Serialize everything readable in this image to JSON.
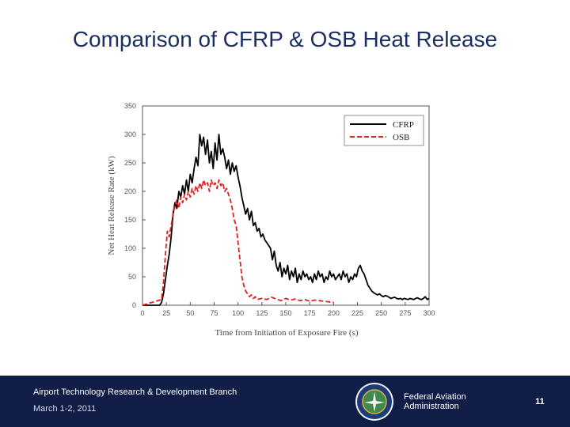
{
  "slide": {
    "title": "Comparison of CFRP & OSB Heat Release"
  },
  "footer": {
    "branch": "Airport Technology Research & Development Branch",
    "date": "March 1-2, 2011",
    "agency": "Federal Aviation Administration",
    "page_number": "11",
    "colors": {
      "background": "#0f1d47",
      "text": "#ffffff"
    }
  },
  "chart_data": {
    "type": "line",
    "xlabel": "Time from Initiation of Exposure Fire (s)",
    "ylabel": "Net Heat Release Rate (kW)",
    "xlim": [
      0,
      300
    ],
    "ylim": [
      0,
      350
    ],
    "xticks": [
      0,
      25,
      50,
      75,
      100,
      125,
      150,
      175,
      200,
      225,
      250,
      275,
      300
    ],
    "yticks": [
      0,
      50,
      100,
      150,
      200,
      250,
      300,
      350
    ],
    "grid": false,
    "legend_position": "top-right",
    "series": [
      {
        "name": "CFRP",
        "color": "#000000",
        "dash": "solid",
        "x": [
          0,
          18,
          20,
          22,
          24,
          26,
          28,
          30,
          32,
          34,
          36,
          38,
          40,
          42,
          44,
          46,
          48,
          50,
          52,
          54,
          56,
          58,
          60,
          62,
          64,
          66,
          68,
          70,
          72,
          74,
          76,
          78,
          80,
          82,
          84,
          86,
          88,
          90,
          92,
          94,
          96,
          98,
          100,
          102,
          104,
          106,
          108,
          110,
          112,
          114,
          116,
          118,
          120,
          122,
          124,
          126,
          128,
          130,
          132,
          134,
          136,
          138,
          140,
          142,
          144,
          146,
          148,
          150,
          152,
          154,
          156,
          158,
          160,
          162,
          164,
          166,
          168,
          170,
          172,
          174,
          176,
          178,
          180,
          182,
          184,
          186,
          188,
          190,
          192,
          194,
          196,
          198,
          200,
          202,
          204,
          206,
          208,
          210,
          212,
          214,
          216,
          218,
          220,
          222,
          224,
          226,
          228,
          230,
          232,
          234,
          236,
          238,
          240,
          242,
          244,
          246,
          248,
          250,
          252,
          254,
          256,
          258,
          260,
          262,
          264,
          266,
          268,
          270,
          272,
          274,
          276,
          278,
          280,
          282,
          284,
          286,
          288,
          290,
          292,
          294,
          296,
          298,
          300
        ],
        "y": [
          0,
          0,
          5,
          20,
          45,
          70,
          90,
          120,
          160,
          180,
          170,
          200,
          190,
          210,
          195,
          220,
          200,
          230,
          215,
          240,
          260,
          245,
          300,
          280,
          295,
          265,
          290,
          250,
          270,
          240,
          285,
          255,
          300,
          265,
          275,
          260,
          240,
          255,
          230,
          250,
          235,
          245,
          225,
          210,
          190,
          175,
          160,
          170,
          150,
          165,
          140,
          145,
          130,
          135,
          120,
          125,
          115,
          110,
          105,
          100,
          80,
          95,
          70,
          60,
          75,
          50,
          65,
          55,
          70,
          45,
          60,
          50,
          65,
          40,
          55,
          45,
          60,
          50,
          55,
          45,
          50,
          40,
          55,
          45,
          60,
          50,
          55,
          40,
          50,
          45,
          60,
          50,
          55,
          45,
          50,
          55,
          45,
          60,
          50,
          55,
          40,
          50,
          45,
          55,
          50,
          65,
          70,
          60,
          55,
          45,
          35,
          30,
          25,
          22,
          20,
          18,
          20,
          17,
          15,
          17,
          16,
          14,
          12,
          13,
          14,
          12,
          11,
          12,
          10,
          12,
          11,
          10,
          12,
          11,
          10,
          12,
          13,
          11,
          10,
          12,
          15,
          10,
          12
        ]
      },
      {
        "name": "OSB",
        "color": "#e02020",
        "dash": "dashed",
        "x": [
          0,
          20,
          22,
          24,
          26,
          28,
          30,
          32,
          34,
          36,
          38,
          40,
          42,
          44,
          46,
          48,
          50,
          52,
          54,
          56,
          58,
          60,
          62,
          64,
          66,
          68,
          70,
          72,
          74,
          76,
          78,
          80,
          82,
          84,
          86,
          88,
          90,
          92,
          94,
          96,
          98,
          100,
          102,
          104,
          106,
          108,
          110,
          112,
          114,
          116,
          118,
          120,
          125,
          130,
          135,
          140,
          145,
          150,
          155,
          160,
          165,
          170,
          175,
          180,
          185,
          190,
          195,
          200
        ],
        "y": [
          0,
          10,
          40,
          90,
          130,
          120,
          140,
          160,
          175,
          185,
          170,
          190,
          180,
          195,
          185,
          200,
          190,
          205,
          195,
          210,
          200,
          215,
          205,
          220,
          210,
          215,
          200,
          220,
          210,
          215,
          205,
          220,
          210,
          215,
          200,
          205,
          195,
          185,
          170,
          150,
          140,
          110,
          80,
          50,
          35,
          25,
          20,
          15,
          18,
          12,
          15,
          10,
          12,
          10,
          14,
          11,
          8,
          12,
          9,
          11,
          8,
          10,
          7,
          9,
          8,
          7,
          6,
          5
        ]
      }
    ]
  }
}
